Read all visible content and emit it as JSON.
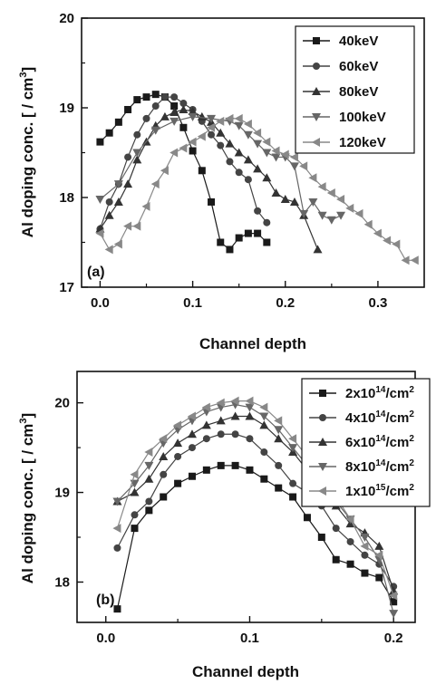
{
  "chart_data": [
    {
      "type": "line",
      "panel_label": "(a)",
      "xlabel": "Channel depth",
      "ylabel": "Al doping conc. [ / cm",
      "ylabel_sup": "3",
      "ylabel_close": "]",
      "xlim": [
        -0.02,
        0.35
      ],
      "ylim": [
        17,
        20
      ],
      "xticks": [
        0.0,
        0.1,
        0.2,
        0.3
      ],
      "xtick_labels": [
        "0.0",
        "0.1",
        "0.2",
        "0.3"
      ],
      "yticks": [
        17,
        18,
        19,
        20
      ],
      "ytick_labels": [
        "17",
        "18",
        "19",
        "20"
      ],
      "legend_position": "top-right",
      "series": [
        {
          "name": "40keV",
          "marker": "square",
          "color": "#1a1a1a",
          "x": [
            0.0,
            0.01,
            0.02,
            0.03,
            0.04,
            0.05,
            0.06,
            0.07,
            0.08,
            0.09,
            0.1,
            0.11,
            0.12,
            0.13,
            0.14,
            0.15,
            0.16,
            0.17,
            0.18
          ],
          "y": [
            18.62,
            18.72,
            18.84,
            18.98,
            19.09,
            19.12,
            19.15,
            19.12,
            19.02,
            18.78,
            18.52,
            18.3,
            17.95,
            17.5,
            17.42,
            17.55,
            17.6,
            17.6,
            17.5
          ]
        },
        {
          "name": "60keV",
          "marker": "circle",
          "color": "#444444",
          "x": [
            0.0,
            0.01,
            0.02,
            0.03,
            0.04,
            0.05,
            0.06,
            0.07,
            0.08,
            0.09,
            0.1,
            0.11,
            0.12,
            0.13,
            0.14,
            0.15,
            0.16,
            0.17,
            0.18
          ],
          "y": [
            17.65,
            17.95,
            18.15,
            18.45,
            18.7,
            18.88,
            19.02,
            19.12,
            19.12,
            19.05,
            18.98,
            18.85,
            18.7,
            18.58,
            18.4,
            18.28,
            18.2,
            17.85,
            17.72
          ]
        },
        {
          "name": "80keV",
          "marker": "triangle-up",
          "color": "#333333",
          "x": [
            0.0,
            0.01,
            0.02,
            0.03,
            0.04,
            0.05,
            0.06,
            0.07,
            0.08,
            0.09,
            0.1,
            0.11,
            0.12,
            0.13,
            0.14,
            0.15,
            0.16,
            0.17,
            0.18,
            0.19,
            0.2,
            0.21,
            0.22,
            0.235
          ],
          "y": [
            17.65,
            17.8,
            17.95,
            18.15,
            18.42,
            18.62,
            18.8,
            18.9,
            18.95,
            18.98,
            18.96,
            18.9,
            18.84,
            18.72,
            18.6,
            18.5,
            18.42,
            18.32,
            18.22,
            18.05,
            17.98,
            17.95,
            17.8,
            17.42
          ]
        },
        {
          "name": "100keV",
          "marker": "triangle-down",
          "color": "#666666",
          "x": [
            0.0,
            0.02,
            0.04,
            0.06,
            0.08,
            0.1,
            0.12,
            0.14,
            0.15,
            0.16,
            0.17,
            0.18,
            0.19,
            0.2,
            0.21,
            0.22,
            0.23,
            0.24,
            0.25,
            0.26
          ],
          "y": [
            17.98,
            18.15,
            18.5,
            18.75,
            18.85,
            18.9,
            18.88,
            18.85,
            18.8,
            18.7,
            18.6,
            18.5,
            18.45,
            18.45,
            18.35,
            17.82,
            17.95,
            17.8,
            17.75,
            17.8
          ]
        },
        {
          "name": "120keV",
          "marker": "triangle-left",
          "color": "#888888",
          "x": [
            0.0,
            0.01,
            0.02,
            0.03,
            0.04,
            0.05,
            0.06,
            0.07,
            0.08,
            0.09,
            0.1,
            0.11,
            0.12,
            0.13,
            0.14,
            0.15,
            0.16,
            0.17,
            0.18,
            0.19,
            0.2,
            0.21,
            0.22,
            0.23,
            0.24,
            0.25,
            0.26,
            0.27,
            0.28,
            0.29,
            0.3,
            0.31,
            0.32,
            0.33,
            0.34
          ],
          "y": [
            17.6,
            17.42,
            17.48,
            17.68,
            17.68,
            17.9,
            18.15,
            18.3,
            18.5,
            18.55,
            18.62,
            18.68,
            18.78,
            18.85,
            18.88,
            18.88,
            18.82,
            18.72,
            18.62,
            18.52,
            18.48,
            18.45,
            18.35,
            18.22,
            18.12,
            18.05,
            17.98,
            17.88,
            17.82,
            17.7,
            17.6,
            17.52,
            17.48,
            17.3,
            17.3
          ]
        }
      ]
    },
    {
      "type": "line",
      "panel_label": "(b)",
      "xlabel": "Channel depth",
      "ylabel": "Al doping conc. [ / cm",
      "ylabel_sup": "3",
      "ylabel_close": "]",
      "xlim": [
        -0.02,
        0.215
      ],
      "ylim": [
        17.55,
        20.35
      ],
      "xticks": [
        0.0,
        0.1,
        0.2
      ],
      "xtick_labels": [
        "0.0",
        "0.1",
        "0.2"
      ],
      "yticks": [
        18,
        19,
        20
      ],
      "ytick_labels": [
        "18",
        "19",
        "20"
      ],
      "legend_position": "top-right",
      "series": [
        {
          "name": "2x10",
          "name_sup": "14",
          "name_tail": "/cm",
          "name_tail_sup": "2",
          "marker": "square",
          "color": "#1a1a1a",
          "x": [
            0.008,
            0.02,
            0.03,
            0.04,
            0.05,
            0.06,
            0.07,
            0.08,
            0.09,
            0.1,
            0.11,
            0.12,
            0.13,
            0.14,
            0.15,
            0.16,
            0.17,
            0.18,
            0.19,
            0.2
          ],
          "y": [
            17.7,
            18.6,
            18.8,
            18.95,
            19.1,
            19.18,
            19.25,
            19.3,
            19.3,
            19.25,
            19.15,
            19.05,
            18.95,
            18.72,
            18.5,
            18.25,
            18.2,
            18.1,
            18.05,
            17.78
          ]
        },
        {
          "name": "4x10",
          "name_sup": "14",
          "name_tail": "/cm",
          "name_tail_sup": "2",
          "marker": "circle",
          "color": "#444444",
          "x": [
            0.008,
            0.02,
            0.03,
            0.04,
            0.05,
            0.06,
            0.07,
            0.08,
            0.09,
            0.1,
            0.11,
            0.12,
            0.13,
            0.14,
            0.15,
            0.16,
            0.17,
            0.18,
            0.19,
            0.2
          ],
          "y": [
            18.38,
            18.75,
            18.9,
            19.2,
            19.4,
            19.5,
            19.6,
            19.65,
            19.65,
            19.6,
            19.45,
            19.3,
            19.1,
            19.0,
            18.85,
            18.6,
            18.45,
            18.3,
            18.2,
            17.95
          ]
        },
        {
          "name": "6x10",
          "name_sup": "14",
          "name_tail": "/cm",
          "name_tail_sup": "2",
          "marker": "triangle-up",
          "color": "#333333",
          "x": [
            0.008,
            0.02,
            0.03,
            0.04,
            0.05,
            0.06,
            0.07,
            0.08,
            0.09,
            0.1,
            0.11,
            0.12,
            0.13,
            0.14,
            0.15,
            0.16,
            0.17,
            0.18,
            0.19,
            0.2
          ],
          "y": [
            18.9,
            19.0,
            19.15,
            19.4,
            19.55,
            19.65,
            19.75,
            19.8,
            19.85,
            19.85,
            19.75,
            19.6,
            19.45,
            19.25,
            19.05,
            18.85,
            18.65,
            18.55,
            18.4,
            17.9
          ]
        },
        {
          "name": "8x10",
          "name_sup": "14",
          "name_tail": "/cm",
          "name_tail_sup": "2",
          "marker": "triangle-down",
          "color": "#666666",
          "x": [
            0.008,
            0.02,
            0.03,
            0.04,
            0.05,
            0.06,
            0.07,
            0.08,
            0.09,
            0.1,
            0.11,
            0.12,
            0.13,
            0.14,
            0.15,
            0.16,
            0.17,
            0.18,
            0.19,
            0.2
          ],
          "y": [
            18.9,
            19.1,
            19.3,
            19.55,
            19.7,
            19.8,
            19.9,
            19.95,
            19.98,
            19.95,
            19.85,
            19.7,
            19.5,
            19.3,
            19.1,
            18.9,
            18.7,
            18.5,
            18.25,
            17.65
          ]
        },
        {
          "name": "1x10",
          "name_sup": "15",
          "name_tail": "/cm",
          "name_tail_sup": "2",
          "marker": "triangle-left",
          "color": "#888888",
          "x": [
            0.008,
            0.02,
            0.03,
            0.04,
            0.05,
            0.06,
            0.07,
            0.08,
            0.09,
            0.1,
            0.11,
            0.12,
            0.13,
            0.14,
            0.15,
            0.16,
            0.17,
            0.18,
            0.19,
            0.2
          ],
          "y": [
            18.6,
            19.2,
            19.45,
            19.6,
            19.75,
            19.85,
            19.95,
            20.0,
            20.02,
            20.02,
            19.95,
            19.8,
            19.6,
            19.4,
            19.15,
            18.95,
            18.7,
            18.4,
            18.3,
            17.85
          ]
        }
      ]
    }
  ]
}
